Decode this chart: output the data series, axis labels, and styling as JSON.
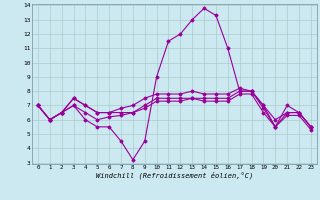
{
  "hours": [
    0,
    1,
    2,
    3,
    4,
    5,
    6,
    7,
    8,
    9,
    10,
    11,
    12,
    13,
    14,
    15,
    16,
    17,
    18,
    19,
    20,
    21,
    22,
    23
  ],
  "line1": [
    7.0,
    6.0,
    6.5,
    7.0,
    6.0,
    5.5,
    5.5,
    4.5,
    3.2,
    4.5,
    9.0,
    11.5,
    12.0,
    13.0,
    13.8,
    13.3,
    11.0,
    8.0,
    8.0,
    7.0,
    5.5,
    6.5,
    6.5,
    5.5
  ],
  "line2": [
    7.0,
    6.0,
    6.5,
    7.5,
    7.0,
    6.5,
    6.5,
    6.8,
    7.0,
    7.5,
    7.8,
    7.8,
    7.8,
    8.0,
    7.8,
    7.8,
    7.8,
    8.2,
    8.0,
    6.8,
    5.5,
    7.0,
    6.5,
    5.5
  ],
  "line3": [
    7.0,
    6.0,
    6.5,
    7.5,
    7.0,
    6.5,
    6.5,
    6.5,
    6.5,
    7.0,
    7.5,
    7.5,
    7.5,
    7.5,
    7.5,
    7.5,
    7.5,
    8.0,
    8.0,
    7.0,
    6.0,
    6.5,
    6.5,
    5.5
  ],
  "line4": [
    7.0,
    6.0,
    6.5,
    7.0,
    6.5,
    6.0,
    6.2,
    6.3,
    6.5,
    6.8,
    7.3,
    7.3,
    7.3,
    7.5,
    7.3,
    7.3,
    7.3,
    7.8,
    7.8,
    6.5,
    5.5,
    6.3,
    6.3,
    5.3
  ],
  "line_color": "#990099",
  "bg_color": "#cce8f0",
  "grid_color": "#aacccc",
  "xlabel": "Windchill (Refroidissement éolien,°C)",
  "ylim": [
    3,
    14
  ],
  "xlim": [
    -0.5,
    23.5
  ],
  "yticks": [
    3,
    4,
    5,
    6,
    7,
    8,
    9,
    10,
    11,
    12,
    13,
    14
  ],
  "xticks": [
    0,
    1,
    2,
    3,
    4,
    5,
    6,
    7,
    8,
    9,
    10,
    11,
    12,
    13,
    14,
    15,
    16,
    17,
    18,
    19,
    20,
    21,
    22,
    23
  ]
}
